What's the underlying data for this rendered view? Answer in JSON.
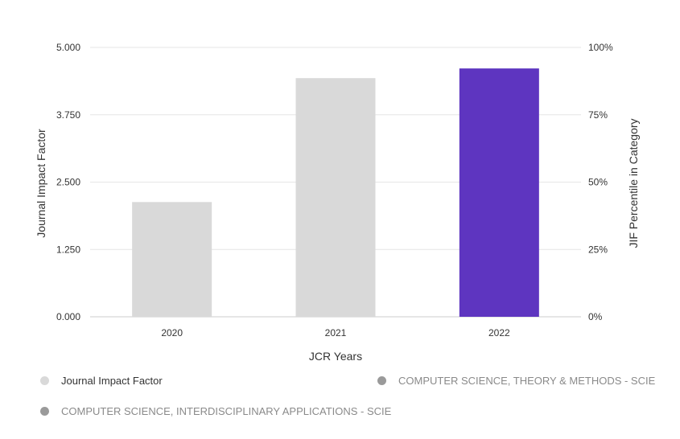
{
  "chart_data": {
    "type": "bar",
    "categories": [
      "2020",
      "2021",
      "2022"
    ],
    "series": [
      {
        "name": "Journal Impact Factor",
        "values": [
          2.13,
          4.43,
          4.61
        ],
        "colors": [
          "#d9d9d9",
          "#d9d9d9",
          "#5e35c0"
        ]
      }
    ],
    "xlabel": "JCR Years",
    "ylabel": "Journal Impact Factor",
    "y2label": "JIF Percentile in Category",
    "ylim": [
      0,
      5
    ],
    "y2lim": [
      0,
      100
    ],
    "yticks": [
      "0.000",
      "1.250",
      "2.500",
      "3.750",
      "5.000"
    ],
    "y2ticks": [
      "0%",
      "25%",
      "50%",
      "75%",
      "100%"
    ],
    "grid": true,
    "legend_placement": "bottom"
  },
  "legend": [
    {
      "label": "Journal Impact Factor",
      "color": "#d9d9d9"
    },
    {
      "label": "COMPUTER SCIENCE, THEORY & METHODS - SCIE",
      "color": "#9a9a9a"
    },
    {
      "label": "COMPUTER SCIENCE, INTERDISCIPLINARY APPLICATIONS - SCIE",
      "color": "#9a9a9a"
    }
  ]
}
